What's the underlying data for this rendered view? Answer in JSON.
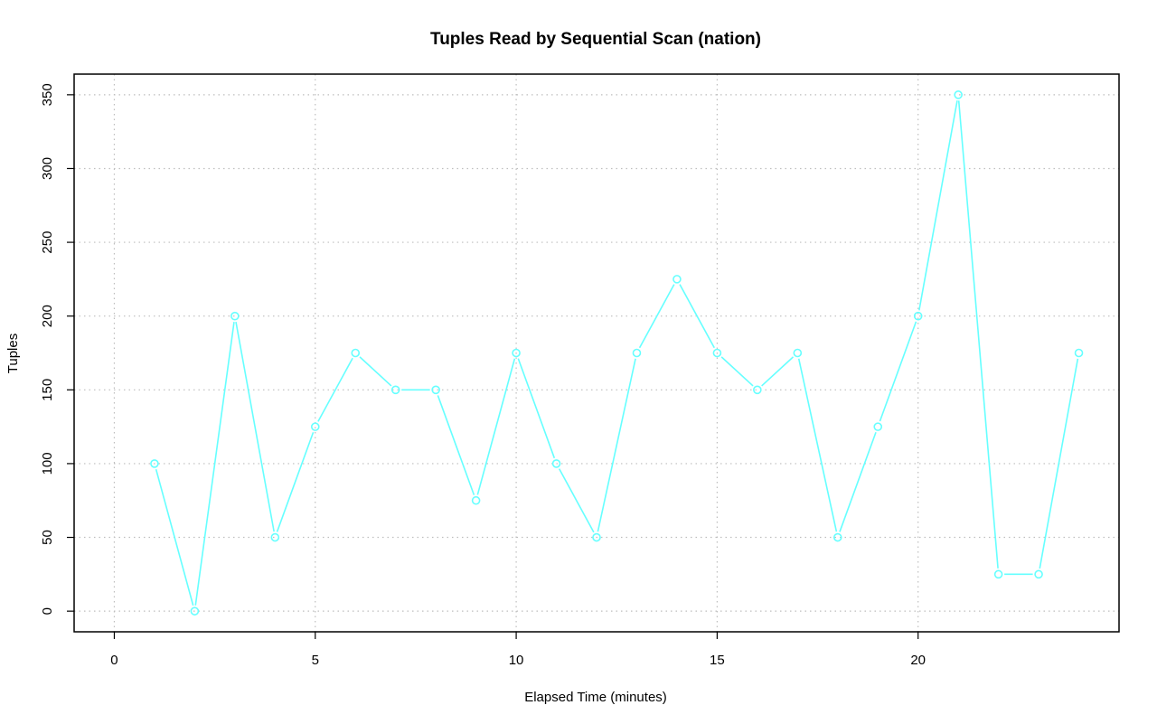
{
  "chart_data": {
    "type": "line",
    "title": "Tuples Read by Sequential Scan (nation)",
    "xlabel": "Elapsed Time (minutes)",
    "ylabel": "Tuples",
    "xlim": [
      -1,
      25
    ],
    "ylim": [
      -14,
      364
    ],
    "xticks": [
      0,
      5,
      10,
      15,
      20
    ],
    "yticks": [
      0,
      50,
      100,
      150,
      200,
      250,
      300,
      350
    ],
    "grid": true,
    "series": [
      {
        "color": "#66FFFF",
        "marker": "circle",
        "x": [
          1,
          2,
          3,
          4,
          5,
          6,
          7,
          8,
          9,
          10,
          11,
          12,
          13,
          14,
          15,
          16,
          17,
          18,
          19,
          20,
          21,
          22,
          23,
          24
        ],
        "values": [
          100,
          0,
          200,
          50,
          125,
          175,
          150,
          150,
          75,
          175,
          100,
          50,
          175,
          225,
          175,
          150,
          175,
          50,
          125,
          200,
          350,
          25,
          25,
          175
        ]
      }
    ]
  }
}
